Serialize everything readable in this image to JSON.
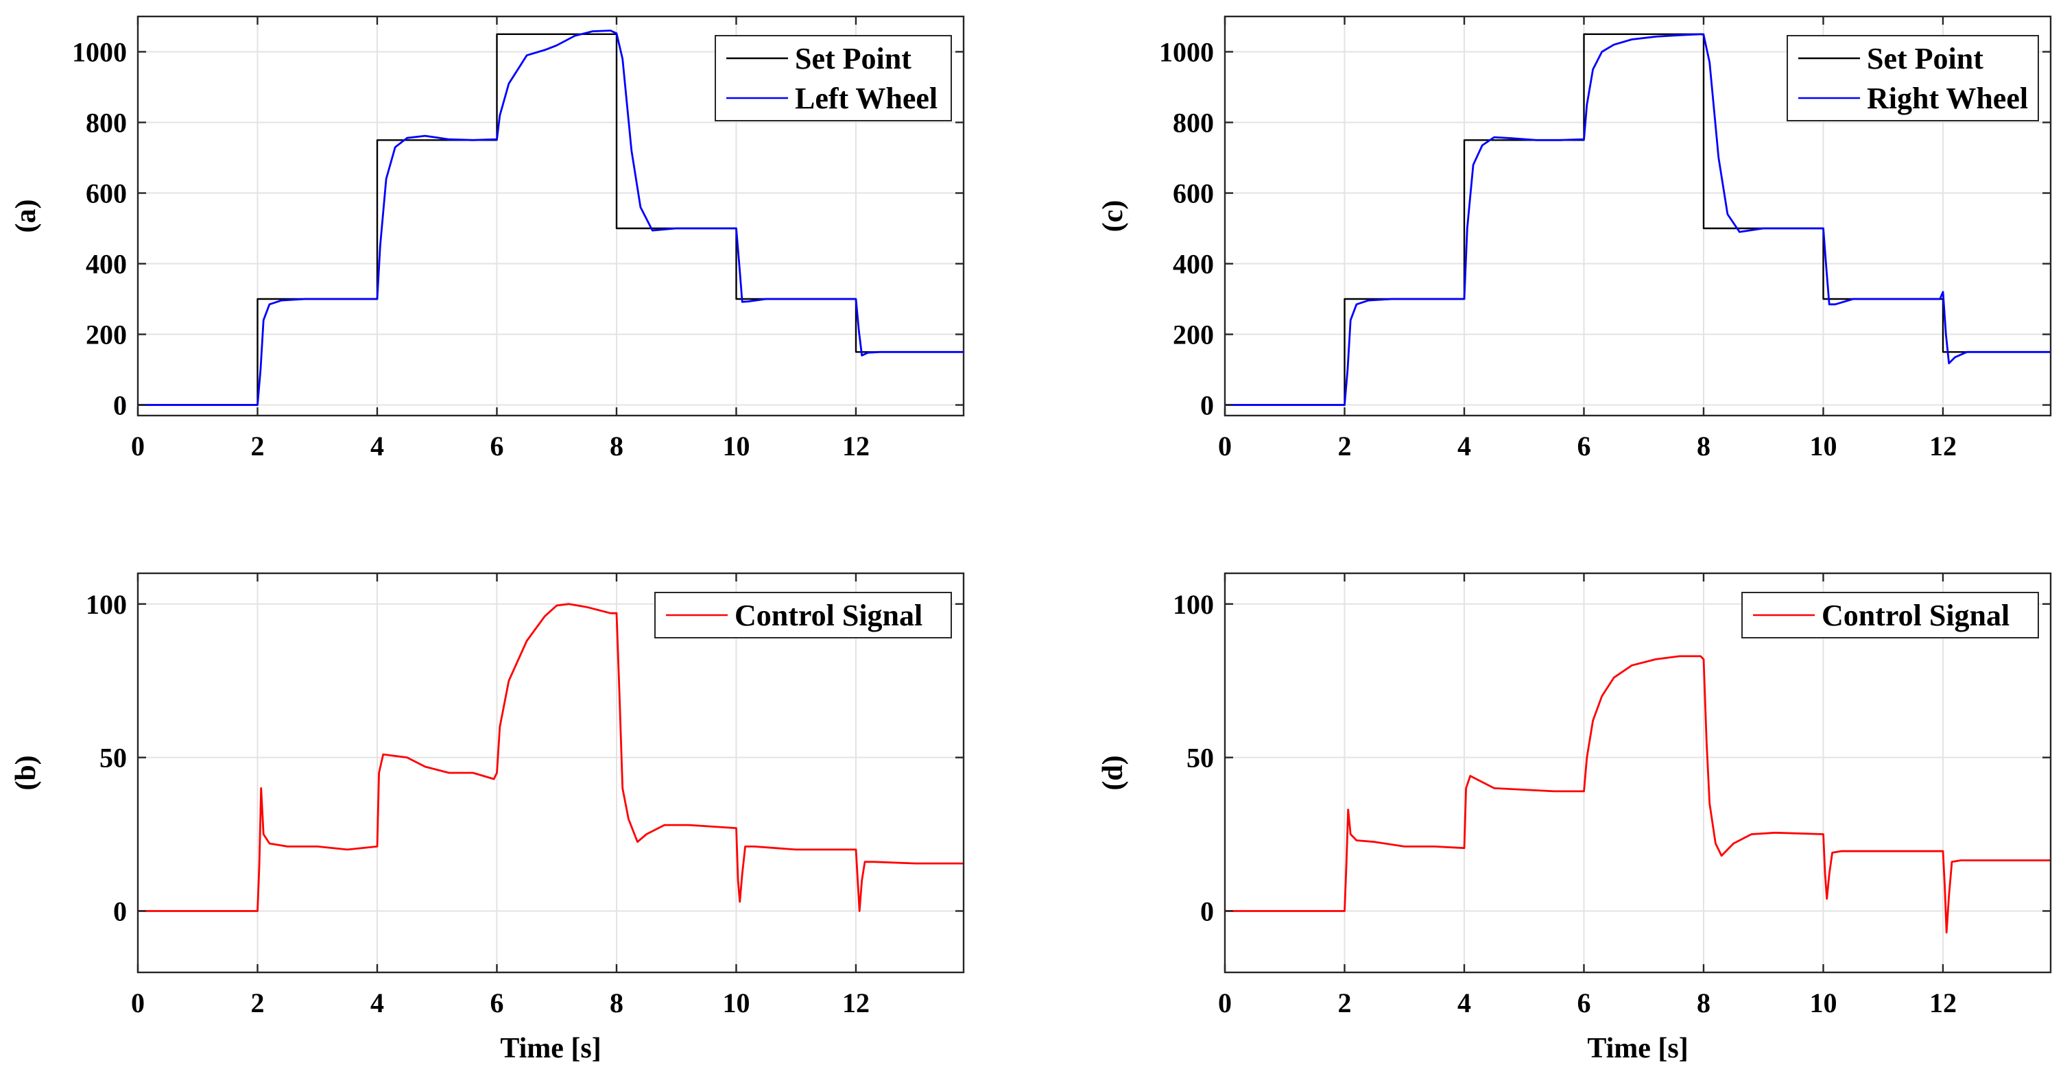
{
  "chart_data": [
    {
      "panel": "a",
      "type": "line",
      "ylabel": "(a)",
      "xlabel": "",
      "xlim": [
        0,
        13.8
      ],
      "ylim": [
        -30,
        1100
      ],
      "xticks": [
        0,
        2,
        4,
        6,
        8,
        10,
        12
      ],
      "yticks": [
        0,
        200,
        400,
        600,
        800,
        1000
      ],
      "grid": true,
      "legend_position": "top-right",
      "series": [
        {
          "name": "Set Point",
          "color": "#000000",
          "shape": "step",
          "x": [
            0,
            2,
            2,
            4,
            4,
            6,
            6,
            8,
            8,
            10,
            10,
            12,
            12,
            13.8
          ],
          "y": [
            0,
            0,
            300,
            300,
            750,
            750,
            1050,
            1050,
            500,
            500,
            300,
            300,
            150,
            150
          ]
        },
        {
          "name": "Left Wheel",
          "color": "#0000ff",
          "shape": "smooth",
          "x": [
            0,
            2.0,
            2.05,
            2.1,
            2.2,
            2.4,
            2.8,
            3.5,
            4.0,
            4.05,
            4.15,
            4.3,
            4.5,
            4.8,
            5.2,
            5.6,
            6.0,
            6.05,
            6.2,
            6.5,
            6.8,
            7.0,
            7.3,
            7.6,
            7.9,
            8.0,
            8.1,
            8.25,
            8.4,
            8.6,
            9.0,
            9.6,
            10.0,
            10.05,
            10.1,
            10.2,
            10.5,
            11.0,
            12.0,
            12.05,
            12.1,
            12.2,
            12.4,
            13.0,
            13.8
          ],
          "y": [
            0,
            0,
            100,
            240,
            285,
            296,
            300,
            300,
            300,
            450,
            640,
            730,
            756,
            762,
            752,
            750,
            752,
            820,
            910,
            990,
            1005,
            1018,
            1045,
            1058,
            1060,
            1052,
            980,
            720,
            560,
            494,
            500,
            500,
            500,
            400,
            292,
            293,
            300,
            300,
            300,
            210,
            140,
            148,
            150,
            150,
            150
          ]
        }
      ]
    },
    {
      "panel": "c",
      "type": "line",
      "ylabel": "(c)",
      "xlabel": "",
      "xlim": [
        0,
        13.8
      ],
      "ylim": [
        -30,
        1100
      ],
      "xticks": [
        0,
        2,
        4,
        6,
        8,
        10,
        12
      ],
      "yticks": [
        0,
        200,
        400,
        600,
        800,
        1000
      ],
      "grid": true,
      "legend_position": "top-right",
      "series": [
        {
          "name": "Set Point",
          "color": "#000000",
          "shape": "step",
          "x": [
            0,
            2,
            2,
            4,
            4,
            6,
            6,
            8,
            8,
            10,
            10,
            12,
            12,
            13.8
          ],
          "y": [
            0,
            0,
            300,
            300,
            750,
            750,
            1050,
            1050,
            500,
            500,
            300,
            300,
            150,
            150
          ]
        },
        {
          "name": "Right Wheel",
          "color": "#0000ff",
          "shape": "smooth",
          "x": [
            0,
            2.0,
            2.05,
            2.1,
            2.2,
            2.4,
            2.8,
            3.5,
            4.0,
            4.05,
            4.15,
            4.3,
            4.5,
            4.8,
            5.2,
            5.6,
            6.0,
            6.05,
            6.15,
            6.3,
            6.5,
            6.8,
            7.2,
            7.6,
            7.95,
            8.0,
            8.1,
            8.25,
            8.4,
            8.6,
            9.0,
            9.6,
            10.0,
            10.05,
            10.1,
            10.2,
            10.5,
            11.0,
            11.9,
            11.95,
            12.0,
            12.05,
            12.1,
            12.2,
            12.4,
            13.0,
            13.8
          ],
          "y": [
            0,
            0,
            100,
            240,
            285,
            296,
            300,
            300,
            300,
            500,
            680,
            735,
            758,
            755,
            750,
            750,
            752,
            850,
            950,
            1000,
            1020,
            1035,
            1043,
            1047,
            1050,
            1048,
            970,
            700,
            540,
            490,
            500,
            500,
            500,
            390,
            285,
            285,
            300,
            300,
            300,
            300,
            320,
            200,
            118,
            135,
            150,
            150,
            150
          ]
        }
      ]
    },
    {
      "panel": "b",
      "type": "line",
      "ylabel": "(b)",
      "xlabel": "Time [s]",
      "xlim": [
        0,
        13.8
      ],
      "ylim": [
        -20,
        110
      ],
      "xticks": [
        0,
        2,
        4,
        6,
        8,
        10,
        12
      ],
      "yticks": [
        0,
        50,
        100
      ],
      "grid": true,
      "legend_position": "top-right",
      "series": [
        {
          "name": "Control Signal",
          "color": "#ff0000",
          "shape": "smooth",
          "x": [
            0,
            2.0,
            2.03,
            2.06,
            2.1,
            2.2,
            2.5,
            3.0,
            3.5,
            4.0,
            4.03,
            4.1,
            4.5,
            4.8,
            5.2,
            5.6,
            5.95,
            6.0,
            6.05,
            6.2,
            6.5,
            6.8,
            7.0,
            7.2,
            7.5,
            7.9,
            8.0,
            8.05,
            8.1,
            8.2,
            8.35,
            8.5,
            8.8,
            9.2,
            10.0,
            10.03,
            10.06,
            10.1,
            10.15,
            10.3,
            11.0,
            12.0,
            12.03,
            12.06,
            12.1,
            12.15,
            12.3,
            13.0,
            13.8
          ],
          "y": [
            0,
            0,
            15,
            40,
            25,
            22,
            21,
            21,
            20,
            21,
            45,
            51,
            50,
            47,
            45,
            45,
            43,
            45,
            60,
            75,
            88,
            96,
            99.5,
            100,
            99,
            97,
            97,
            70,
            40,
            30,
            22.5,
            25,
            28,
            28,
            27,
            10,
            3,
            12,
            21,
            21,
            20,
            20,
            10,
            0,
            10,
            16,
            16,
            15.5,
            15.5
          ]
        }
      ]
    },
    {
      "panel": "d",
      "type": "line",
      "ylabel": "(d)",
      "xlabel": "Time [s]",
      "xlim": [
        0,
        13.8
      ],
      "ylim": [
        -20,
        110
      ],
      "xticks": [
        0,
        2,
        4,
        6,
        8,
        10,
        12
      ],
      "yticks": [
        0,
        50,
        100
      ],
      "grid": true,
      "legend_position": "top-right",
      "series": [
        {
          "name": "Control Signal",
          "color": "#ff0000",
          "shape": "smooth",
          "x": [
            0,
            2.0,
            2.03,
            2.06,
            2.1,
            2.2,
            2.5,
            3.0,
            3.5,
            4.0,
            4.03,
            4.1,
            4.5,
            5.0,
            5.5,
            6.0,
            6.05,
            6.15,
            6.3,
            6.5,
            6.8,
            7.2,
            7.6,
            7.95,
            8.0,
            8.05,
            8.1,
            8.2,
            8.3,
            8.5,
            8.8,
            9.2,
            10.0,
            10.03,
            10.06,
            10.1,
            10.15,
            10.3,
            11.0,
            12.0,
            12.03,
            12.06,
            12.1,
            12.15,
            12.3,
            13.0,
            13.8
          ],
          "y": [
            0,
            0,
            15,
            33,
            25,
            23,
            22.5,
            21,
            21,
            20.5,
            40,
            44,
            40,
            39.5,
            39,
            39,
            50,
            62,
            70,
            76,
            80,
            82,
            83,
            83,
            82,
            55,
            35,
            22,
            18,
            22,
            25,
            25.5,
            25,
            12,
            4,
            12,
            19,
            19.5,
            19.5,
            19.5,
            8,
            -7,
            5,
            16,
            16.5,
            16.5,
            16.5
          ]
        }
      ]
    }
  ]
}
